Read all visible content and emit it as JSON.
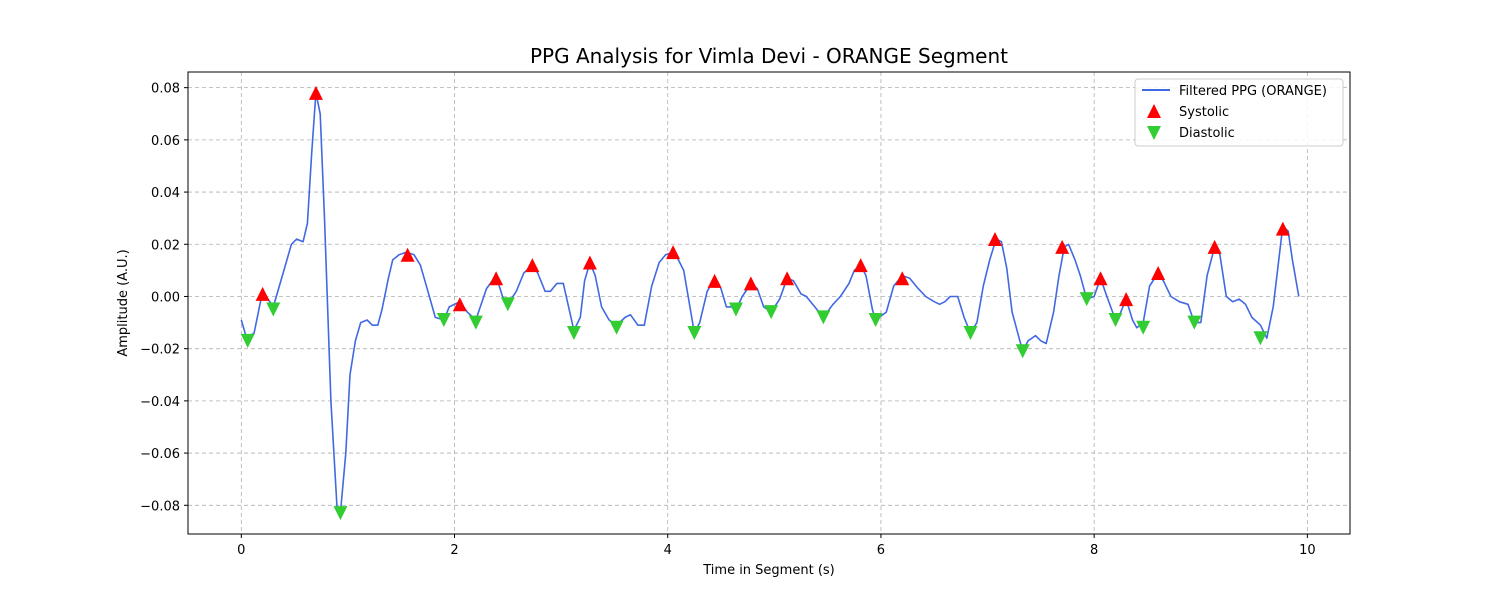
{
  "chart_data": {
    "type": "line",
    "title": "PPG Analysis for Vimla Devi - ORANGE Segment",
    "xlabel": "Time in Segment (s)",
    "ylabel": "Amplitude (A.U.)",
    "xlim": [
      -0.5,
      10.4
    ],
    "ylim": [
      -0.091,
      0.086
    ],
    "x_ticks": [
      0,
      2,
      4,
      6,
      8,
      10
    ],
    "y_ticks": [
      -0.08,
      -0.06,
      -0.04,
      -0.02,
      0.0,
      0.02,
      0.04,
      0.06,
      0.08
    ],
    "x_tick_labels": [
      "0",
      "2",
      "4",
      "6",
      "8",
      "10"
    ],
    "y_tick_labels": [
      "−0.08",
      "−0.06",
      "−0.04",
      "−0.02",
      "0.00",
      "0.02",
      "0.04",
      "0.06",
      "0.08"
    ],
    "grid": true,
    "legend_position": "top-right",
    "colors": {
      "line": "#4169e1",
      "systolic": "#ff0000",
      "diastolic": "#32cd32"
    },
    "series": [
      {
        "name": "Filtered PPG (ORANGE)",
        "kind": "line",
        "x": [
          0.0,
          0.05,
          0.12,
          0.2,
          0.3,
          0.4,
          0.47,
          0.52,
          0.58,
          0.62,
          0.66,
          0.7,
          0.74,
          0.78,
          0.84,
          0.9,
          0.93,
          0.98,
          1.02,
          1.07,
          1.12,
          1.18,
          1.23,
          1.28,
          1.32,
          1.38,
          1.42,
          1.48,
          1.55,
          1.62,
          1.68,
          1.75,
          1.82,
          1.9,
          1.95,
          2.05,
          2.12,
          2.2,
          2.3,
          2.39,
          2.45,
          2.5,
          2.58,
          2.65,
          2.73,
          2.78,
          2.85,
          2.9,
          2.96,
          3.02,
          3.12,
          3.18,
          3.22,
          3.27,
          3.32,
          3.38,
          3.45,
          3.52,
          3.6,
          3.65,
          3.72,
          3.78,
          3.85,
          3.92,
          3.98,
          4.05,
          4.1,
          4.15,
          4.25,
          4.3,
          4.37,
          4.44,
          4.5,
          4.55,
          4.6,
          4.64,
          4.7,
          4.78,
          4.84,
          4.9,
          4.97,
          5.05,
          5.12,
          5.18,
          5.25,
          5.3,
          5.38,
          5.46,
          5.55,
          5.62,
          5.7,
          5.75,
          5.81,
          5.86,
          5.92,
          5.95,
          6.05,
          6.12,
          6.2,
          6.27,
          6.35,
          6.42,
          6.5,
          6.55,
          6.6,
          6.65,
          6.72,
          6.78,
          6.84,
          6.9,
          6.96,
          7.02,
          7.08,
          7.13,
          7.18,
          7.23,
          7.33,
          7.38,
          7.45,
          7.5,
          7.55,
          7.62,
          7.67,
          7.72,
          7.76,
          7.82,
          7.87,
          7.93,
          8.0,
          8.06,
          8.12,
          8.2,
          8.24,
          8.3,
          8.36,
          8.4,
          8.46,
          8.52,
          8.6,
          8.65,
          8.72,
          8.8,
          8.88,
          8.94,
          9.0,
          9.06,
          9.13,
          9.18,
          9.24,
          9.3,
          9.36,
          9.42,
          9.48,
          9.56,
          9.62,
          9.68,
          9.77,
          9.82,
          9.86,
          9.92
        ],
        "y": [
          -0.009,
          -0.016,
          -0.014,
          0.002,
          -0.004,
          0.01,
          0.02,
          0.022,
          0.021,
          0.028,
          0.055,
          0.078,
          0.07,
          0.03,
          -0.04,
          -0.082,
          -0.083,
          -0.06,
          -0.03,
          -0.017,
          -0.01,
          -0.009,
          -0.011,
          -0.011,
          -0.005,
          0.007,
          0.014,
          0.016,
          0.017,
          0.016,
          0.012,
          0.002,
          -0.008,
          -0.009,
          -0.004,
          -0.002,
          -0.006,
          -0.009,
          0.003,
          0.008,
          0.0,
          -0.003,
          0.002,
          0.009,
          0.012,
          0.009,
          0.002,
          0.002,
          0.005,
          0.005,
          -0.013,
          -0.008,
          0.006,
          0.013,
          0.008,
          -0.004,
          -0.009,
          -0.011,
          -0.008,
          -0.007,
          -0.011,
          -0.011,
          0.004,
          0.013,
          0.016,
          0.017,
          0.014,
          0.01,
          -0.014,
          -0.01,
          0.002,
          0.007,
          0.003,
          -0.004,
          -0.004,
          -0.005,
          0.0,
          0.005,
          0.003,
          -0.004,
          -0.006,
          -0.001,
          0.007,
          0.006,
          0.001,
          0.0,
          -0.004,
          -0.008,
          -0.003,
          0.0,
          0.005,
          0.01,
          0.012,
          0.008,
          -0.005,
          -0.009,
          -0.006,
          0.004,
          0.008,
          0.007,
          0.003,
          0.0,
          -0.002,
          -0.003,
          -0.002,
          0.0,
          0.0,
          -0.008,
          -0.014,
          -0.01,
          0.004,
          0.014,
          0.022,
          0.021,
          0.011,
          -0.006,
          -0.021,
          -0.017,
          -0.015,
          -0.017,
          -0.018,
          -0.006,
          0.008,
          0.019,
          0.02,
          0.014,
          0.008,
          -0.001,
          0.0,
          0.007,
          0.0,
          -0.009,
          -0.007,
          -0.001,
          -0.009,
          -0.012,
          -0.01,
          0.004,
          0.009,
          0.006,
          0.0,
          -0.002,
          -0.003,
          -0.01,
          -0.01,
          0.008,
          0.019,
          0.016,
          0.0,
          -0.002,
          -0.001,
          -0.003,
          -0.008,
          -0.011,
          -0.016,
          -0.004,
          0.027,
          0.025,
          0.014,
          0.0
        ]
      },
      {
        "name": "Systolic",
        "kind": "marker-up",
        "x": [
          0.2,
          0.7,
          1.56,
          2.05,
          2.39,
          2.73,
          3.27,
          4.05,
          4.44,
          4.78,
          5.12,
          5.81,
          6.2,
          7.07,
          7.7,
          8.06,
          8.3,
          8.6,
          9.13,
          9.77
        ],
        "y": [
          0.001,
          0.078,
          0.016,
          -0.003,
          0.007,
          0.012,
          0.013,
          0.017,
          0.006,
          0.005,
          0.007,
          0.012,
          0.007,
          0.022,
          0.019,
          0.007,
          -0.001,
          0.009,
          0.019,
          0.026
        ]
      },
      {
        "name": "Diastolic",
        "kind": "marker-down",
        "x": [
          0.06,
          0.3,
          0.93,
          1.9,
          2.2,
          2.5,
          3.12,
          3.52,
          4.25,
          4.64,
          4.97,
          5.46,
          5.95,
          6.84,
          7.33,
          7.93,
          8.2,
          8.46,
          8.94,
          9.56
        ],
        "y": [
          -0.017,
          -0.005,
          -0.083,
          -0.009,
          -0.01,
          -0.003,
          -0.014,
          -0.012,
          -0.014,
          -0.005,
          -0.006,
          -0.008,
          -0.009,
          -0.014,
          -0.021,
          -0.001,
          -0.009,
          -0.012,
          -0.01,
          -0.016
        ]
      }
    ]
  }
}
